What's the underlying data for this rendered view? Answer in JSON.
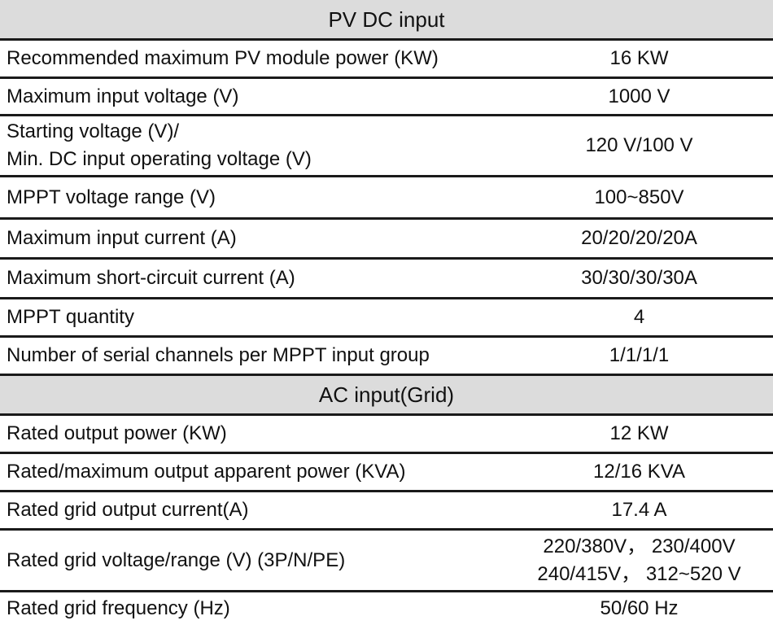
{
  "sections": [
    {
      "title": "PV DC input",
      "rows": [
        {
          "label": "Recommended maximum PV module power (KW)",
          "value": "16 KW"
        },
        {
          "label": "Maximum input voltage (V)",
          "value": "1000 V"
        },
        {
          "label_line1": "Starting voltage (V)/",
          "label_line2": "Min. DC input operating voltage (V)",
          "value": "120 V/100 V"
        },
        {
          "label": "MPPT voltage range (V)",
          "value": "100~850V"
        },
        {
          "label": "Maximum input current (A)",
          "value": "20/20/20/20A"
        },
        {
          "label": "Maximum short-circuit current (A)",
          "value": "30/30/30/30A"
        },
        {
          "label": "MPPT quantity",
          "value": "4"
        },
        {
          "label": "Number of serial channels per MPPT input group",
          "value": "1/1/1/1"
        }
      ]
    },
    {
      "title": "AC input(Grid)",
      "rows": [
        {
          "label": "Rated output power (KW)",
          "value": "12 KW"
        },
        {
          "label": "Rated/maximum output apparent power (KVA)",
          "value": "12/16 KVA"
        },
        {
          "label": "Rated  grid output current(A)",
          "value": "17.4 A"
        },
        {
          "label": "Rated grid voltage/range (V) (3P/N/PE)",
          "value_line1": "220/380V， 230/400V",
          "value_line2": "240/415V， 312~520 V"
        },
        {
          "label": "Rated grid frequency (Hz)",
          "value": "50/60 Hz"
        }
      ]
    }
  ]
}
